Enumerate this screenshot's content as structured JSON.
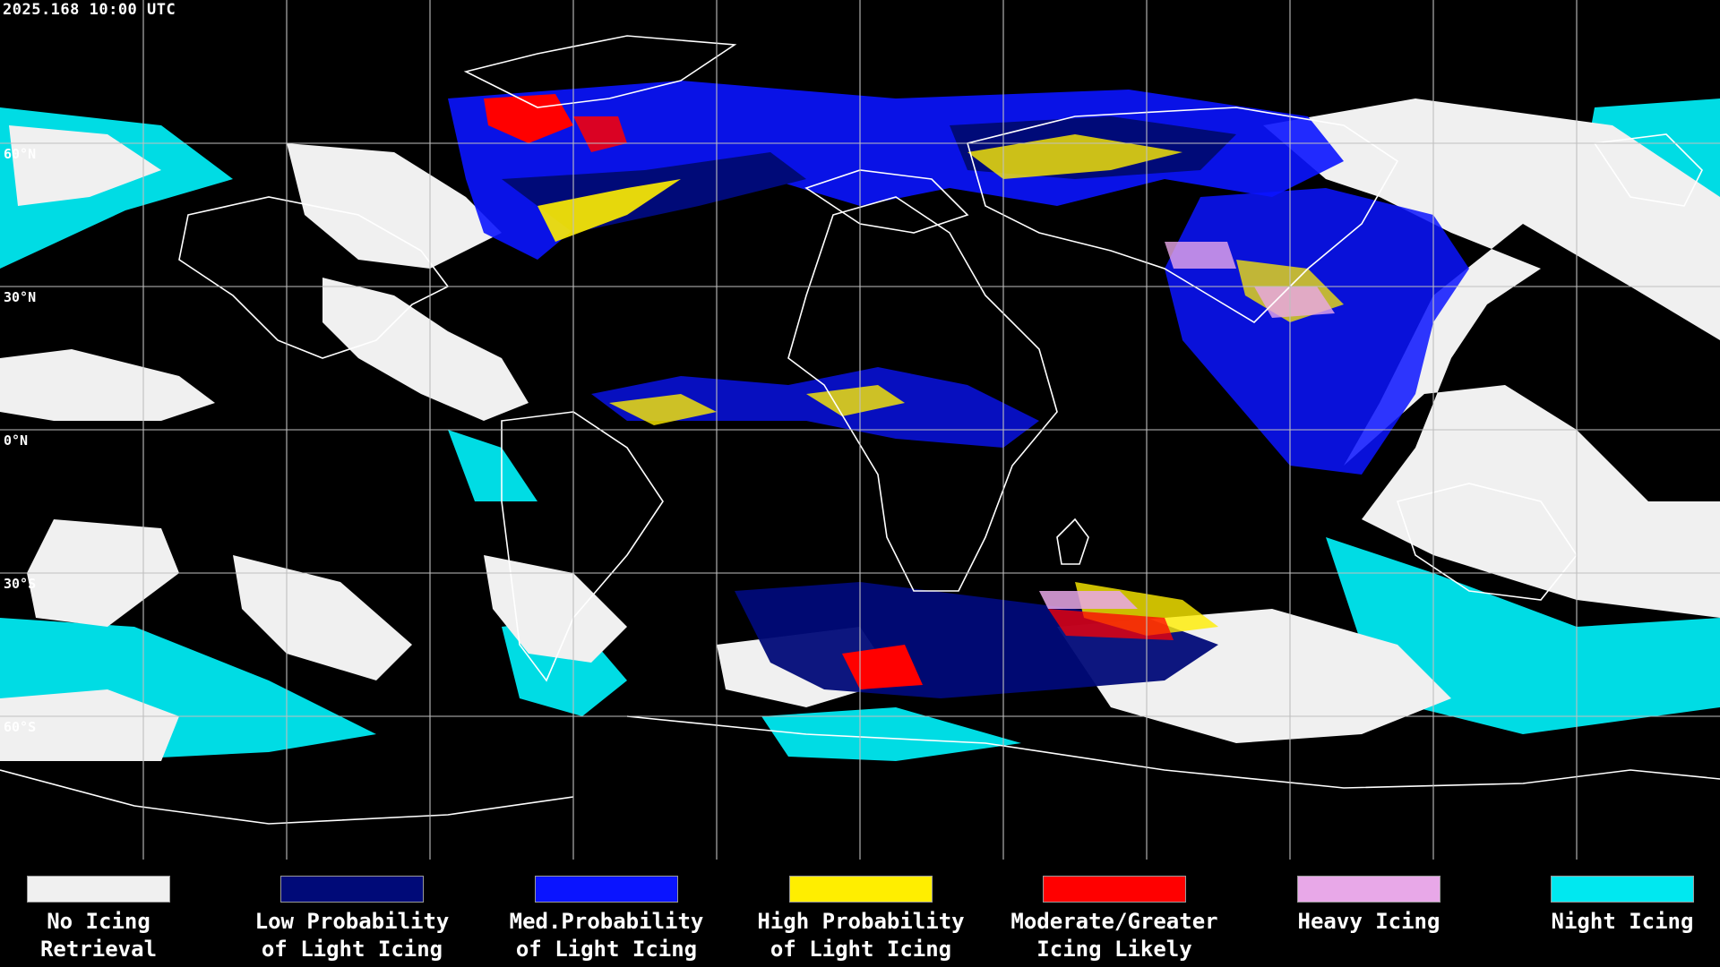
{
  "header": {
    "timestamp": "2025.168 10:00 UTC"
  },
  "map": {
    "latitude_labels": [
      "60°N",
      "30°N",
      "0°N",
      "30°S",
      "60°S"
    ],
    "colors": {
      "background": "#000000",
      "grid": "#bfbfbf",
      "coast": "#ffffff",
      "no_icing": "#f0f0f0",
      "low": "#000a78",
      "med": "#0a14ff",
      "high": "#ffee00",
      "moderate": "#ff0000",
      "heavy": "#e8a8e8",
      "night": "#00e8f0"
    }
  },
  "legend": {
    "items": [
      {
        "line1": "No Icing",
        "line2": "Retrieval",
        "color": "#f0f0f0"
      },
      {
        "line1": "Low Probability",
        "line2": "of Light Icing",
        "color": "#000a78"
      },
      {
        "line1": "Med.Probability",
        "line2": "of Light Icing",
        "color": "#0a14ff"
      },
      {
        "line1": "High Probability",
        "line2": "of Light Icing",
        "color": "#ffee00"
      },
      {
        "line1": "Moderate/Greater",
        "line2": "Icing Likely",
        "color": "#ff0000"
      },
      {
        "line1": "Heavy Icing",
        "line2": "",
        "color": "#e8a8e8"
      },
      {
        "line1": "Night Icing",
        "line2": "",
        "color": "#00e8f0"
      }
    ]
  }
}
